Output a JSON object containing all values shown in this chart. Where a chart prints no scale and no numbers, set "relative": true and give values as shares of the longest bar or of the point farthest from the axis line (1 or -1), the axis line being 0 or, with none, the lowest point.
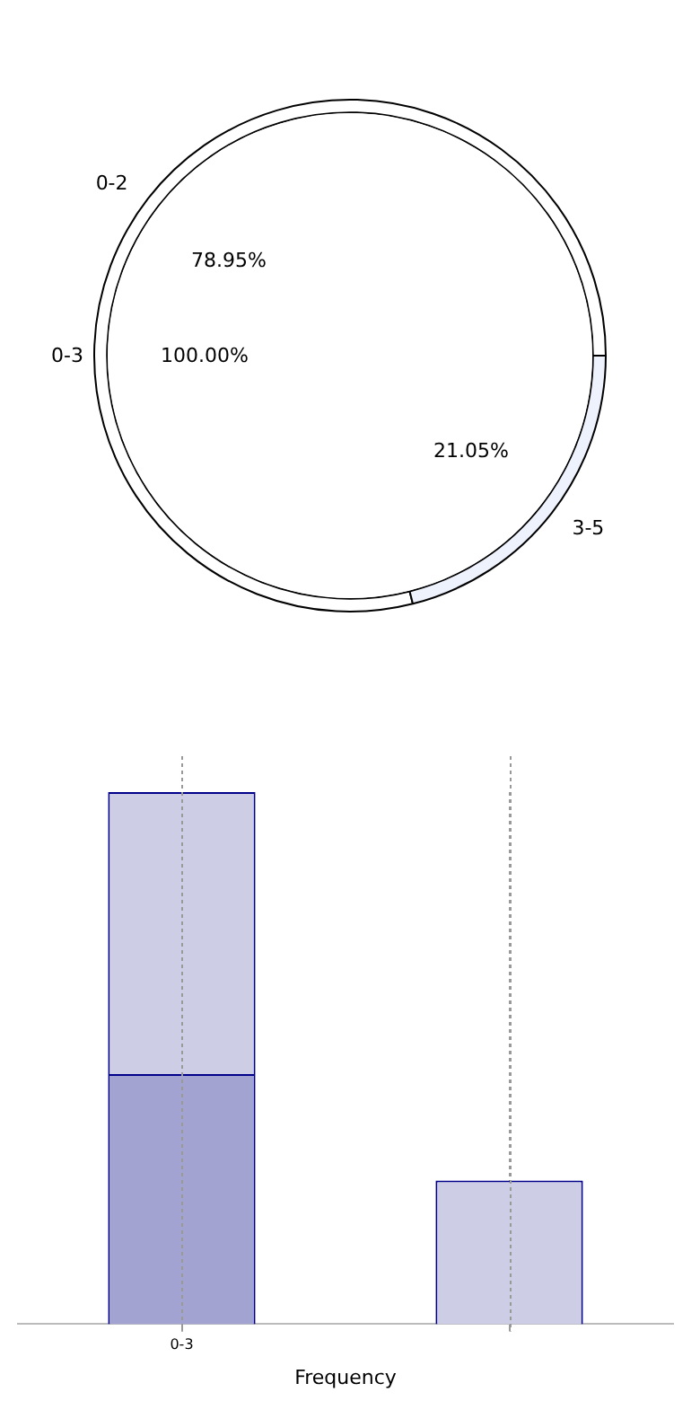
{
  "chart_data": [
    {
      "type": "donut",
      "categories": [
        "0-2",
        "3-5"
      ],
      "values": [
        78.95,
        21.05
      ],
      "colors": [
        "#ffffff",
        "#eef2fc"
      ],
      "value_labels": [
        "78.95%",
        "21.05%"
      ]
    },
    {
      "type": "pie",
      "categories": [
        "0-3"
      ],
      "values": [
        100
      ],
      "colors": [
        "#ffffff"
      ],
      "value_labels": [
        "100.00%"
      ]
    },
    {
      "type": "bar",
      "relative": true,
      "stacked": true,
      "categories": [
        "0-3",
        null
      ],
      "xlabel": "Frequency",
      "grid": "x",
      "series": [
        {
          "color": "#a3a3d1",
          "values": [
            0.47,
            null
          ]
        },
        {
          "color": "#cdcde5",
          "values": [
            0.53,
            0.27
          ]
        }
      ]
    }
  ]
}
